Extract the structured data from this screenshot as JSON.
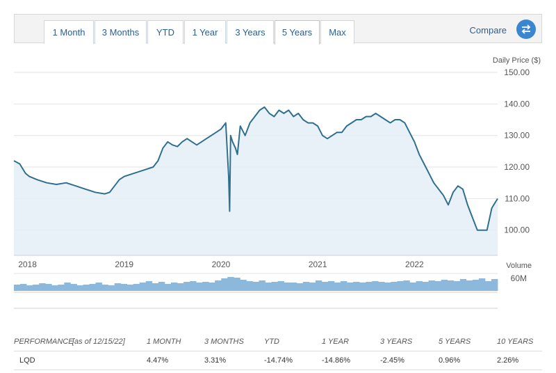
{
  "tabs": [
    {
      "label": "1 Month",
      "active": false
    },
    {
      "label": "3 Months",
      "active": false
    },
    {
      "label": "YTD",
      "active": false
    },
    {
      "label": "1 Year",
      "active": false
    },
    {
      "label": "3 Years",
      "active": false
    },
    {
      "label": "5 Years",
      "active": true
    },
    {
      "label": "Max",
      "active": false
    }
  ],
  "compare_label": "Compare",
  "compare_icon": "swap-arrows-icon",
  "colors": {
    "line": "#2e6f8e",
    "fill": "#e4eef6",
    "volume": "#8cb8dc",
    "accent": "#2a5f92"
  },
  "chart_data": [
    {
      "type": "area",
      "ylabel": "Daily Price ($)",
      "y_ticks": [
        "150.00",
        "140.00",
        "130.00",
        "120.00",
        "110.00",
        "100.00"
      ],
      "ylim": [
        92,
        150
      ],
      "x_ticks": [
        "2018",
        "2019",
        "2020",
        "2021",
        "2022"
      ],
      "xlim": [
        2017.96,
        2022.96
      ],
      "grid": true,
      "series": [
        {
          "x": [
            2017.96,
            2018.02,
            2018.08,
            2018.12,
            2018.2,
            2018.3,
            2018.4,
            2018.5,
            2018.6,
            2018.7,
            2018.8,
            2018.9,
            2018.95,
            2019.0,
            2019.05,
            2019.1,
            2019.2,
            2019.3,
            2019.4,
            2019.45,
            2019.5,
            2019.55,
            2019.6,
            2019.65,
            2019.7,
            2019.75,
            2019.8,
            2019.85,
            2019.9,
            2019.95,
            2020.0,
            2020.05,
            2020.1,
            2020.15,
            2020.18,
            2020.19,
            2020.2,
            2020.22,
            2020.25,
            2020.27,
            2020.3,
            2020.35,
            2020.4,
            2020.45,
            2020.5,
            2020.55,
            2020.6,
            2020.65,
            2020.7,
            2020.75,
            2020.8,
            2020.85,
            2020.9,
            2020.95,
            2021.0,
            2021.05,
            2021.1,
            2021.15,
            2021.2,
            2021.25,
            2021.3,
            2021.35,
            2021.4,
            2021.45,
            2021.5,
            2021.55,
            2021.6,
            2021.65,
            2021.7,
            2021.75,
            2021.8,
            2021.85,
            2021.9,
            2021.95,
            2022.0,
            2022.05,
            2022.1,
            2022.15,
            2022.2,
            2022.25,
            2022.3,
            2022.35,
            2022.4,
            2022.45,
            2022.5,
            2022.55,
            2022.6,
            2022.65,
            2022.7,
            2022.75,
            2022.8,
            2022.85,
            2022.9,
            2022.96
          ],
          "y": [
            122,
            121,
            118,
            117,
            116,
            115,
            114.5,
            115,
            114,
            113,
            112,
            111.5,
            112,
            114,
            116,
            117,
            118,
            119,
            120,
            122,
            126,
            128,
            127,
            126.5,
            128,
            129,
            128,
            127,
            128,
            129,
            130,
            131,
            132,
            134,
            117,
            106,
            130,
            128,
            126,
            124,
            133,
            130,
            134,
            136,
            138,
            139,
            137,
            136,
            138,
            137,
            138,
            136,
            137,
            135,
            134,
            134,
            133,
            130,
            129,
            130,
            131,
            131,
            133,
            134,
            135,
            135,
            136,
            136,
            137,
            136,
            135,
            134,
            135,
            135,
            134,
            131,
            128,
            124,
            121,
            118,
            115,
            113,
            111,
            108,
            112,
            114,
            113,
            108,
            104,
            100,
            100,
            100,
            107,
            110
          ]
        }
      ]
    },
    {
      "type": "bar",
      "ylabel": "Volume",
      "y_ticks": [
        "60M"
      ],
      "note": "daily volume bars, relative heights",
      "values": [
        0.45,
        0.5,
        0.4,
        0.45,
        0.55,
        0.5,
        0.4,
        0.45,
        0.6,
        0.5,
        0.4,
        0.45,
        0.5,
        0.6,
        0.45,
        0.4,
        0.55,
        0.5,
        0.45,
        0.5,
        0.6,
        0.7,
        0.55,
        0.65,
        0.5,
        0.6,
        0.55,
        0.65,
        0.7,
        0.6,
        0.65,
        0.6,
        0.75,
        0.9,
        1.0,
        0.95,
        0.8,
        0.7,
        0.65,
        0.75,
        0.6,
        0.65,
        0.7,
        0.6,
        0.6,
        0.55,
        0.65,
        0.6,
        0.75,
        0.65,
        0.7,
        0.6,
        0.7,
        0.6,
        0.65,
        0.6,
        0.65,
        0.7,
        0.65,
        0.6,
        0.65,
        0.7,
        0.75,
        0.6,
        0.7,
        0.65,
        0.75,
        0.7,
        0.8,
        0.75,
        0.7,
        0.85,
        0.75,
        0.8,
        0.9,
        0.7,
        0.85
      ]
    }
  ],
  "performance": {
    "headers": [
      "PERFORMANCE",
      "[as of 12/15/22]",
      "1 MONTH",
      "3 MONTHS",
      "YTD",
      "1 YEAR",
      "3 YEARS",
      "5 YEARS",
      "10 YEARS"
    ],
    "row": [
      "LQD",
      "4.47%",
      "3.31%",
      "-14.74%",
      "-14.86%",
      "-2.45%",
      "0.96%",
      "2.26%"
    ]
  }
}
